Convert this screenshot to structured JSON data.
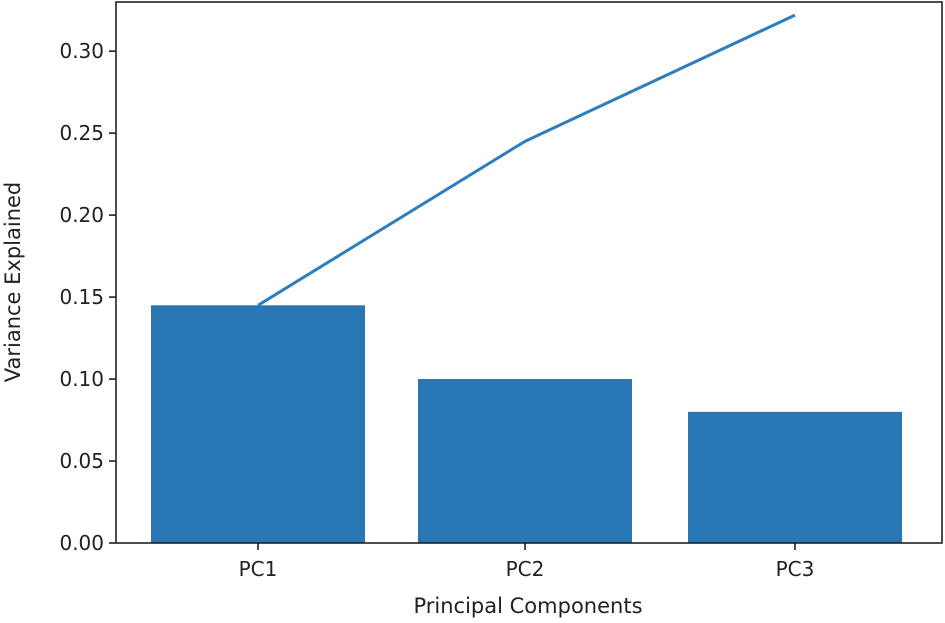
{
  "chart_data": {
    "type": "bar",
    "categories": [
      "PC1",
      "PC2",
      "PC3"
    ],
    "series": [
      {
        "kind": "bar",
        "values": [
          0.145,
          0.1,
          0.08
        ],
        "color": "#2876b4"
      },
      {
        "kind": "line",
        "values": [
          0.145,
          0.245,
          0.322
        ],
        "color": "#2e7ebd"
      }
    ],
    "xlabel": "Principal Components",
    "ylabel": "Variance Explained",
    "ylim": [
      0,
      0.33
    ],
    "yticks": [
      0.0,
      0.05,
      0.1,
      0.15,
      0.2,
      0.25,
      0.3
    ],
    "ytick_labels": [
      "0.00",
      "0.05",
      "0.10",
      "0.15",
      "0.20",
      "0.25",
      "0.30"
    ],
    "grid": false,
    "legend": "none"
  }
}
